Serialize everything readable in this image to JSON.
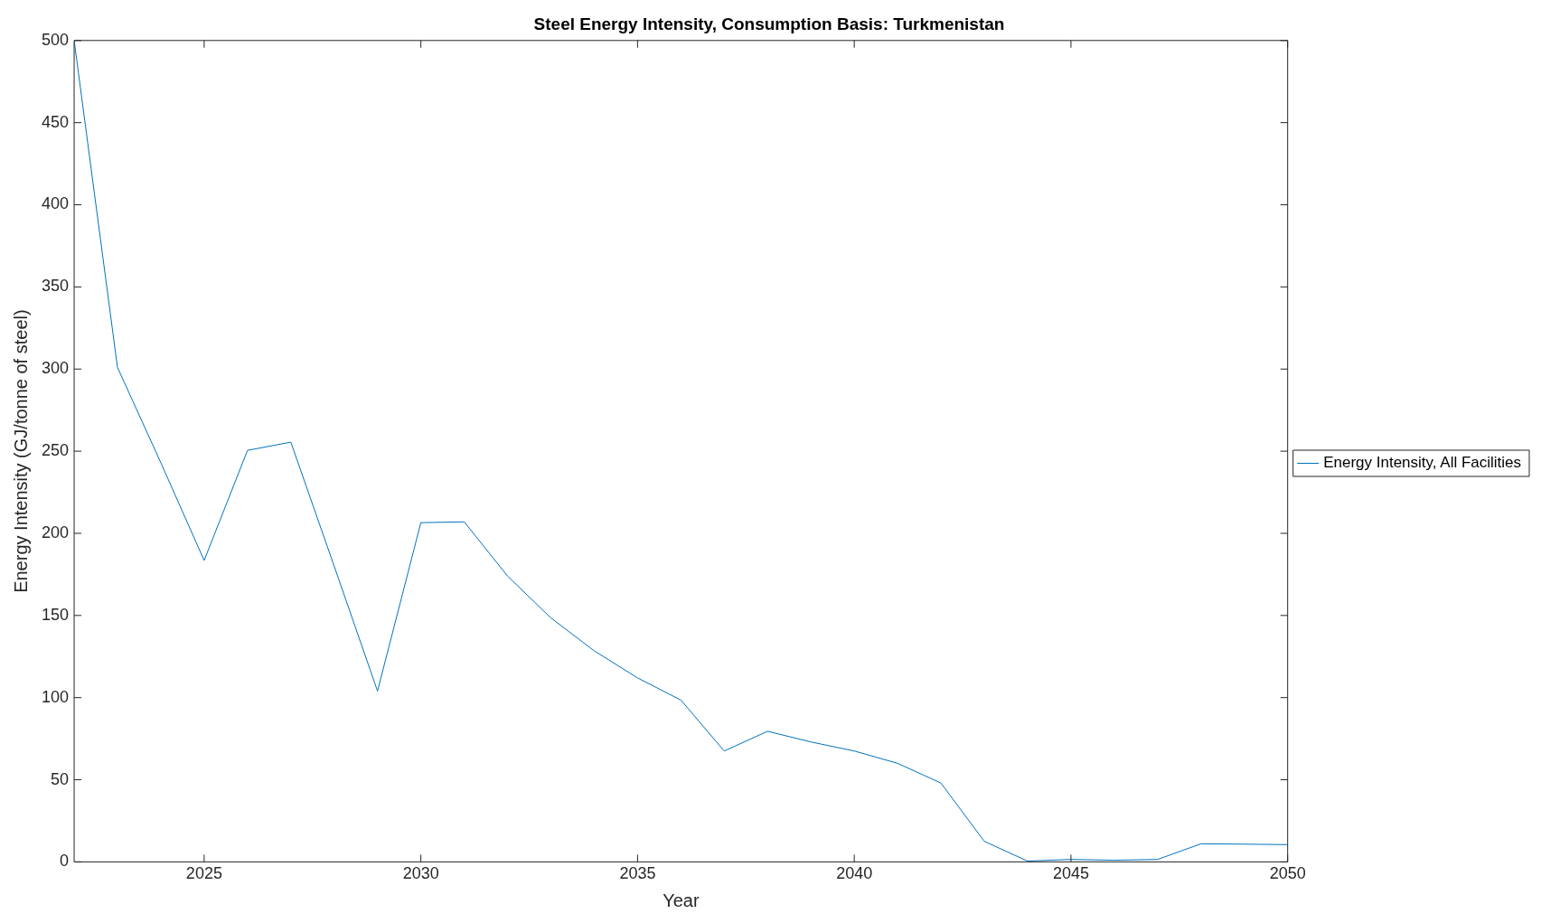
{
  "chart_data": {
    "type": "line",
    "title": "Steel Energy Intensity, Consumption Basis: Turkmenistan",
    "xlabel": "Year",
    "ylabel": "Energy Intensity (GJ/tonne of steel)",
    "x": [
      2022,
      2023,
      2024,
      2025,
      2026,
      2027,
      2028,
      2029,
      2030,
      2031,
      2032,
      2033,
      2034,
      2035,
      2036,
      2037,
      2038,
      2039,
      2040,
      2041,
      2042,
      2043,
      2044,
      2045,
      2046,
      2047,
      2048,
      2049,
      2050
    ],
    "series": [
      {
        "name": "Energy Intensity, All Facilities",
        "color": "#0072bd",
        "values": [
          500,
          301,
          243,
          183.5,
          250.5,
          255.5,
          180,
          104,
          206.5,
          207,
          174,
          148.5,
          128.5,
          112,
          98.5,
          67.5,
          79.5,
          73,
          67.5,
          60,
          48,
          12.5,
          0.5,
          1.5,
          1,
          1.5,
          11,
          10.8,
          10.5
        ]
      }
    ],
    "xlim": [
      2022,
      2050
    ],
    "xticks": [
      2025,
      2030,
      2035,
      2040,
      2045,
      2050
    ],
    "ylim": [
      0,
      500
    ],
    "yticks": [
      0,
      50,
      100,
      150,
      200,
      250,
      300,
      350,
      400,
      450,
      500
    ],
    "grid": false,
    "legend": "right",
    "marker": "none",
    "line_style": "solid"
  }
}
